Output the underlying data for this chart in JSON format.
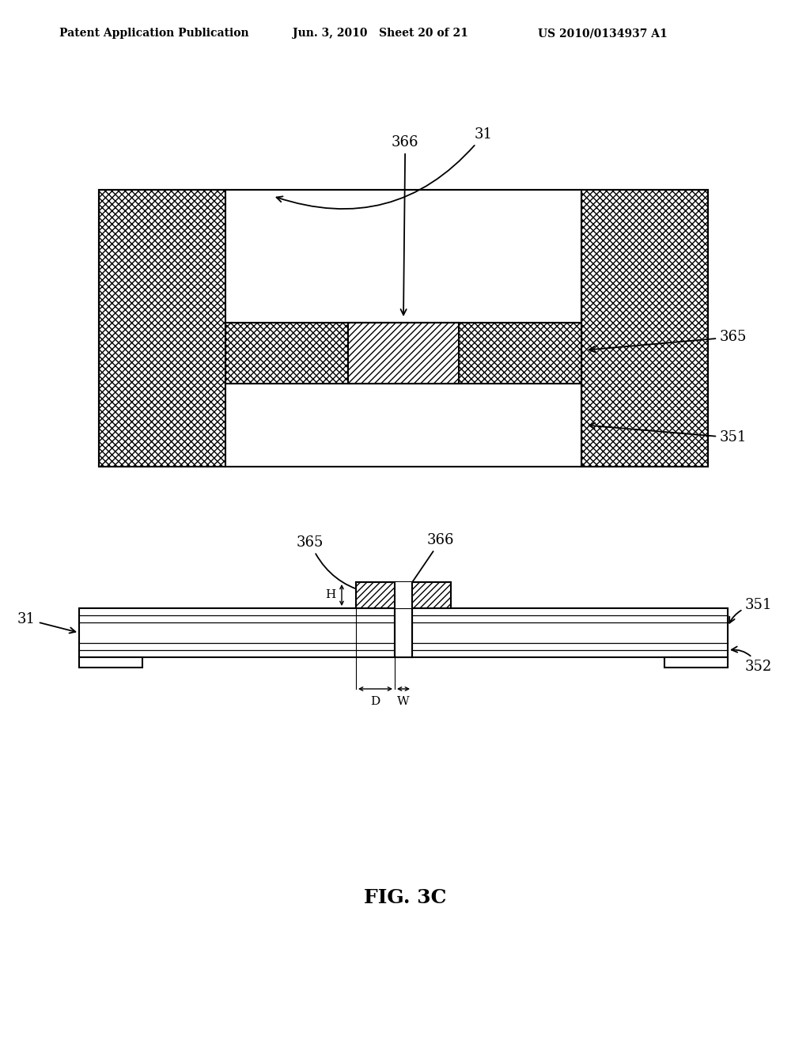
{
  "bg_color": "#ffffff",
  "header_left": "Patent Application Publication",
  "header_mid": "Jun. 3, 2010   Sheet 20 of 21",
  "header_right": "US 2010/0134937 A1",
  "fig_label": "FIG. 3C"
}
